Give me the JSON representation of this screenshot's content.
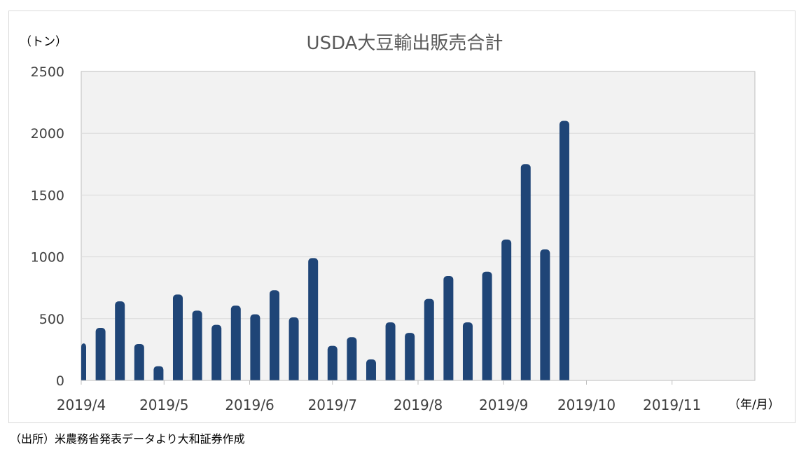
{
  "chart_data": {
    "type": "bar",
    "title": "USDA大豆輸出販売合計",
    "ylabel": "（トン）",
    "xlabel": "（年/月）",
    "ylim": [
      0,
      2500
    ],
    "yticks": [
      "0",
      "500",
      "1000",
      "1500",
      "2000",
      "2500"
    ],
    "xlim": [
      "2019/4",
      "2019/12"
    ],
    "xticks": [
      "2019/4",
      "2019/5",
      "2019/6",
      "2019/7",
      "2019/8",
      "2019/9",
      "2019/10",
      "2019/11"
    ],
    "grid": true,
    "bar_color": "#1f4577",
    "plot_bg": "#f2f2f2",
    "series": [
      {
        "dates": [
          "2019-04-01",
          "2019-04-08",
          "2019-04-15",
          "2019-04-22",
          "2019-04-29",
          "2019-05-06",
          "2019-05-13",
          "2019-05-20",
          "2019-05-27",
          "2019-06-03",
          "2019-06-10",
          "2019-06-17",
          "2019-06-24",
          "2019-07-01",
          "2019-07-08",
          "2019-07-15",
          "2019-07-22",
          "2019-07-29",
          "2019-08-05",
          "2019-08-12",
          "2019-08-19",
          "2019-08-26",
          "2019-09-02",
          "2019-09-09",
          "2019-09-16",
          "2019-09-23"
        ],
        "values": [
          300,
          425,
          640,
          295,
          115,
          695,
          565,
          450,
          605,
          535,
          730,
          510,
          990,
          280,
          350,
          170,
          470,
          385,
          660,
          845,
          470,
          880,
          1140,
          1750,
          1060,
          2100
        ]
      }
    ]
  },
  "source_note": "（出所）米農務省発表データより大和証券作成"
}
